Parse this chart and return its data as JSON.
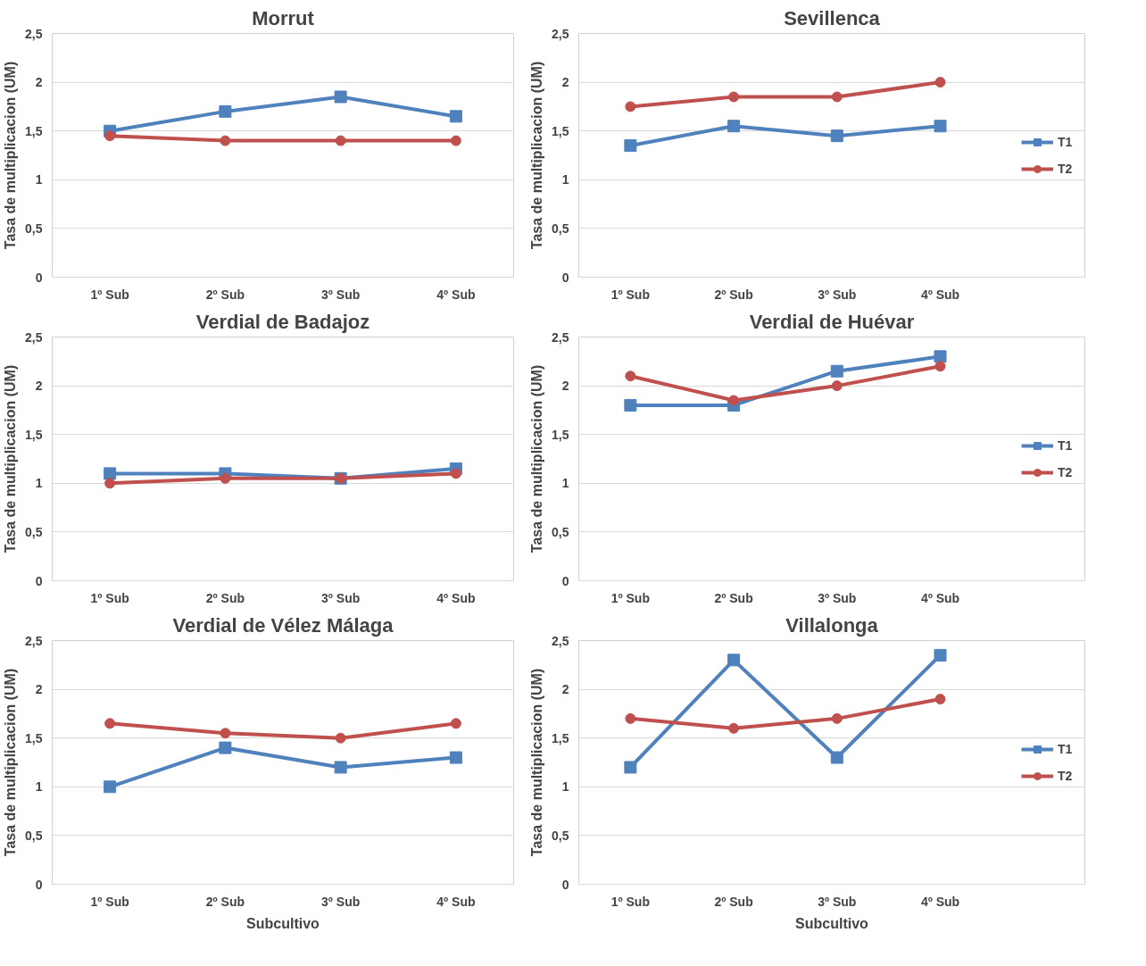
{
  "chart_data": [
    {
      "type": "line",
      "title": "Morrut",
      "ylabel": "Tasa de multiplicacion (UM)",
      "categories": [
        "1º Sub",
        "2º Sub",
        "3º Sub",
        "4º Sub"
      ],
      "ylim": [
        0,
        2.5
      ],
      "yticks": [
        0,
        {
          "value": 0.5,
          "label": "0,5"
        },
        1,
        {
          "value": 1.5,
          "label": "1,5"
        },
        2,
        {
          "value": 2.5,
          "label": "2,5"
        }
      ],
      "grid": "y",
      "line_style": "solid",
      "series": [
        {
          "color": "#4f81bd",
          "marker": "square",
          "values": [
            1.5,
            1.7,
            1.85,
            1.65
          ]
        },
        {
          "color": "#c0504d",
          "marker": "circle",
          "values": [
            1.45,
            1.4,
            1.4,
            1.4
          ]
        }
      ]
    },
    {
      "type": "line",
      "title": "Sevillenca",
      "ylabel": "Tasa de multiplicacion (UM)",
      "categories": [
        "1º Sub",
        "2º Sub",
        "3º Sub",
        "4º Sub"
      ],
      "ylim": [
        0,
        2.5
      ],
      "yticks": [
        0,
        {
          "value": 0.5,
          "label": "0,5"
        },
        1,
        {
          "value": 1.5,
          "label": "1,5"
        },
        2,
        {
          "value": 2.5,
          "label": "2,5"
        }
      ],
      "grid": "y",
      "legend": "right",
      "line_style": "solid",
      "series": [
        {
          "name": "T1",
          "color": "#4f81bd",
          "marker": "square",
          "values": [
            1.35,
            1.55,
            1.45,
            1.55
          ]
        },
        {
          "name": "T2",
          "color": "#c0504d",
          "marker": "circle",
          "values": [
            1.75,
            1.85,
            1.85,
            2.0
          ]
        }
      ]
    },
    {
      "type": "line",
      "title": "Verdial de Badajoz",
      "ylabel": "Tasa de multiplicacion (UM)",
      "categories": [
        "1º Sub",
        "2º Sub",
        "3º Sub",
        "4º Sub"
      ],
      "ylim": [
        0,
        2.5
      ],
      "yticks": [
        0,
        {
          "value": 0.5,
          "label": "0,5"
        },
        1,
        {
          "value": 1.5,
          "label": "1,5"
        },
        2,
        {
          "value": 2.5,
          "label": "2,5"
        }
      ],
      "grid": "y",
      "line_style": "solid",
      "series": [
        {
          "color": "#4f81bd",
          "marker": "square",
          "values": [
            1.1,
            1.1,
            1.05,
            1.15
          ]
        },
        {
          "color": "#c0504d",
          "marker": "circle",
          "values": [
            1.0,
            1.05,
            1.05,
            1.1
          ]
        }
      ]
    },
    {
      "type": "line",
      "title": "Verdial de Huévar",
      "ylabel": "Tasa de multiplicacion (UM)",
      "categories": [
        "1º Sub",
        "2º Sub",
        "3º Sub",
        "4º Sub"
      ],
      "ylim": [
        0,
        2.5
      ],
      "yticks": [
        0,
        {
          "value": 0.5,
          "label": "0,5"
        },
        1,
        {
          "value": 1.5,
          "label": "1,5"
        },
        2,
        {
          "value": 2.5,
          "label": "2,5"
        }
      ],
      "grid": "y",
      "legend": "right",
      "line_style": "solid",
      "series": [
        {
          "name": "T1",
          "color": "#4f81bd",
          "marker": "square",
          "values": [
            1.8,
            1.8,
            2.15,
            2.3
          ]
        },
        {
          "name": "T2",
          "color": "#c0504d",
          "marker": "circle",
          "values": [
            2.1,
            1.85,
            2.0,
            2.2
          ]
        }
      ]
    },
    {
      "type": "line",
      "title": "Verdial de Vélez Málaga",
      "xlabel": "Subcultivo",
      "ylabel": "Tasa de multiplicacion (UM)",
      "categories": [
        "1º Sub",
        "2º Sub",
        "3º Sub",
        "4º Sub"
      ],
      "ylim": [
        0,
        2.5
      ],
      "yticks": [
        0,
        {
          "value": 0.5,
          "label": "0,5"
        },
        1,
        {
          "value": 1.5,
          "label": "1,5"
        },
        2,
        {
          "value": 2.5,
          "label": "2,5"
        }
      ],
      "grid": "y",
      "line_style": "solid",
      "series": [
        {
          "color": "#4f81bd",
          "marker": "square",
          "values": [
            1.0,
            1.4,
            1.2,
            1.3
          ]
        },
        {
          "color": "#c0504d",
          "marker": "circle",
          "values": [
            1.65,
            1.55,
            1.5,
            1.65
          ]
        }
      ]
    },
    {
      "type": "line",
      "title": "Villalonga",
      "xlabel": "Subcultivo",
      "ylabel": "Tasa de multiplicacion (UM)",
      "categories": [
        "1º Sub",
        "2º Sub",
        "3º Sub",
        "4º Sub"
      ],
      "ylim": [
        0,
        2.5
      ],
      "yticks": [
        0,
        {
          "value": 0.5,
          "label": "0,5"
        },
        1,
        {
          "value": 1.5,
          "label": "1,5"
        },
        2,
        {
          "value": 2.5,
          "label": "2,5"
        }
      ],
      "grid": "y",
      "legend": "right",
      "line_style": "solid",
      "series": [
        {
          "name": "T1",
          "color": "#4f81bd",
          "marker": "square",
          "values": [
            1.2,
            2.3,
            1.3,
            2.35
          ]
        },
        {
          "name": "T2",
          "color": "#c0504d",
          "marker": "circle",
          "values": [
            1.7,
            1.6,
            1.7,
            1.9
          ]
        }
      ]
    }
  ]
}
